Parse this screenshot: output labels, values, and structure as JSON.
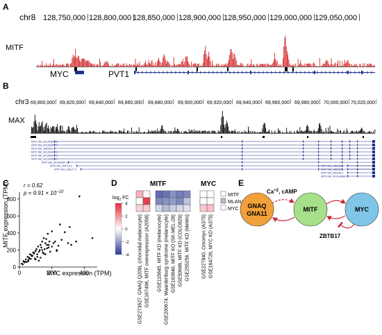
{
  "panels": {
    "A": {
      "letter": "A",
      "chrom": "chr8",
      "coords": [
        "128,750,000",
        "128,800,000",
        "128,850,000",
        "128,900,000",
        "128,950,000",
        "129,000,000",
        "129,050,000"
      ],
      "track": "MITF",
      "genes": [
        "MYC",
        "PVT1"
      ],
      "colors": {
        "track": "#d62728",
        "gene": "#1f2f8f"
      }
    },
    "B": {
      "letter": "B",
      "chrom": "chr3",
      "coords": [
        "69,800,000",
        "69,820,000",
        "69,840,000",
        "69,860,000",
        "69,880,000",
        "69,900,000",
        "69,920,000",
        "69,940,000",
        "69,960,000",
        "69,980,000",
        "70,000,000",
        "70,020,000"
      ],
      "track": "MAX",
      "transcripts_left": [
        "MITF NM_001354604.2",
        "MITF NM_001354605.2",
        "MITF NM_198158.3",
        "MITF NM_001354606.2",
        "MITF NM_001354607.2",
        "MITF NM_001354608.2"
      ],
      "transcripts_mid": [
        "MITF NM_001184967.2",
        "MITF NM_006722.3",
        "MITF NM_198177.3"
      ],
      "transcripts_right": [
        "MITF NM_198178.3",
        "MITF NM_198159.3",
        "MITF NM_000248.4",
        "MITF NM_001184968.2"
      ],
      "colors": {
        "track": "#000000",
        "gene": "#1f2f8f"
      }
    },
    "C": {
      "letter": "C",
      "stat_r": "r = 0.62",
      "stat_p": "p = 9.91 × 10",
      "stat_p_exp": "−10"
    },
    "D": {
      "letter": "D",
      "header_left": "MITF",
      "header_right": "MYC",
      "legend_title": "log",
      "legend_sub": "2",
      "legend_fc": " FC",
      "legend_ticks": [
        "4",
        "2",
        "0",
        "-2",
        "-4"
      ],
      "key": [
        "MITF",
        "MLANA",
        "MYC"
      ],
      "colors": {
        "high": "#e8283a",
        "low": "#2b3a98",
        "mid": "#ffffff",
        "na": "#bbbbbb"
      },
      "columns": [
        "GSE273527, GNAQ Q209L (choroidal melanocyte)",
        "GSE167496, MITF overexpression (A2058)",
        "GSE115845, MITF KD (melanocyte)",
        "GSE200674, Waardenburg syndrome (melanocyte)",
        "GSE163646, MITF KO (SK-MEL-28)",
        "GSE50686, MITF KD (COLO829)",
        "GSE255256, MITF KD (MeWo)",
        "GSE227840, Omomyc (A375)",
        "GSE164726, MYC KD (A375)"
      ]
    },
    "E": {
      "letter": "E",
      "node1_line1": "GNAQ",
      "node1_line2": "GNA11",
      "node2": "MITF",
      "node3": "MYC",
      "label_ca": "Ca",
      "label_ca_sup": "+2",
      "label_camp": ", cAMP",
      "label_zbtb": "ZBTB17",
      "colors": {
        "node1": "#f2a03a",
        "node2": "#a6e08a",
        "node3": "#7fc6e8",
        "arrow": "#c8283a"
      }
    }
  },
  "chart_data": {
    "type": "scatter",
    "xlabel": "MYC expression (TPM)",
    "ylabel": "MITF expression (TPM)",
    "xlim": [
      0,
      480
    ],
    "ylim": [
      0,
      880
    ],
    "xticks": [
      0,
      200,
      400
    ],
    "yticks": [
      0,
      200,
      400,
      600,
      800
    ],
    "x": [
      15,
      25,
      30,
      40,
      45,
      50,
      55,
      60,
      65,
      70,
      75,
      80,
      85,
      90,
      95,
      100,
      105,
      110,
      115,
      120,
      125,
      130,
      135,
      140,
      145,
      150,
      155,
      160,
      165,
      170,
      175,
      180,
      185,
      190,
      200,
      210,
      220,
      230,
      240,
      250,
      260,
      280,
      300,
      310,
      320,
      350,
      370,
      450,
      20,
      35,
      60,
      90,
      110,
      140,
      160,
      180,
      200,
      230,
      130,
      100,
      75,
      55,
      150,
      170,
      120
    ],
    "y": [
      40,
      70,
      55,
      90,
      60,
      120,
      80,
      110,
      150,
      95,
      140,
      130,
      170,
      160,
      100,
      190,
      210,
      150,
      240,
      180,
      200,
      260,
      230,
      300,
      170,
      340,
      210,
      280,
      330,
      220,
      390,
      260,
      300,
      180,
      240,
      280,
      300,
      200,
      250,
      500,
      320,
      410,
      280,
      470,
      260,
      300,
      830,
      340,
      30,
      60,
      100,
      170,
      120,
      200,
      150,
      230,
      420,
      190,
      110,
      90,
      130,
      70,
      160,
      260,
      75
    ]
  }
}
